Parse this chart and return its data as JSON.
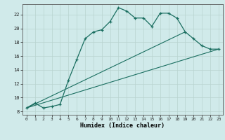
{
  "xlabel": "Humidex (Indice chaleur)",
  "bg_color": "#d0eaea",
  "line_color": "#1a6e60",
  "grid_color": "#b8d4d0",
  "xlim": [
    -0.5,
    23.5
  ],
  "ylim": [
    7.5,
    23.5
  ],
  "yticks": [
    8,
    10,
    12,
    14,
    16,
    18,
    20,
    22
  ],
  "xticks": [
    0,
    1,
    2,
    3,
    4,
    5,
    6,
    7,
    8,
    9,
    10,
    11,
    12,
    13,
    14,
    15,
    16,
    17,
    18,
    19,
    20,
    21,
    22,
    23
  ],
  "main_x": [
    0,
    1,
    2,
    3,
    4,
    5,
    6,
    7,
    8,
    9,
    10,
    11,
    12,
    13,
    14,
    15,
    16,
    17,
    18,
    19,
    20,
    21,
    22,
    23
  ],
  "main_y": [
    8.5,
    9.2,
    8.5,
    8.7,
    9.0,
    12.5,
    15.5,
    18.5,
    19.5,
    19.8,
    21.0,
    23.0,
    22.5,
    21.5,
    21.5,
    20.3,
    22.2,
    22.2,
    21.5,
    19.5,
    18.5,
    17.5,
    17.0,
    17.0
  ],
  "line2_x": [
    0,
    19
  ],
  "line2_y": [
    8.5,
    19.5
  ],
  "line3_x": [
    0,
    23
  ],
  "line3_y": [
    8.5,
    17.0
  ]
}
